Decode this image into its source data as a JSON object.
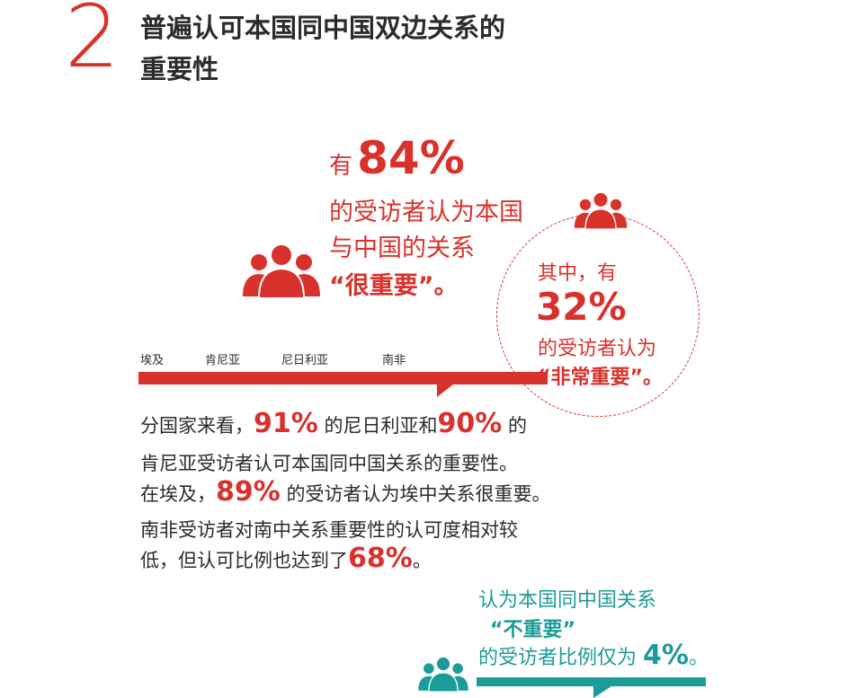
{
  "section": {
    "number": "2",
    "title_line1": "普遍认可本国同中国双边关系的",
    "title_line2": "重要性"
  },
  "main_stat": {
    "prefix": "有",
    "percent": "84%",
    "line1": "的受访者认为本国",
    "line2": "与中国的关系",
    "line3": "“很重要”。"
  },
  "sub_stat": {
    "line1": "其中，有",
    "percent": "32%",
    "line3": "的受访者认为",
    "line4": "“非常重要”。"
  },
  "countries": [
    "埃及",
    "肯尼亚",
    "尼日利亚",
    "南非"
  ],
  "body": {
    "l1_a": "分国家来看，",
    "l1_pct1": "91%",
    "l1_b": "的尼日利亚和",
    "l1_pct2": "90%",
    "l1_c": "的",
    "l2": "肯尼亚受访者认可本国同中国关系的重要性。",
    "l3_a": "在埃及，",
    "l3_pct": "89%",
    "l3_b": "的受访者认为埃中关系很重要。",
    "l4": "南非受访者对南中关系重要性的认可度相对较",
    "l5_a": "低，但认可比例也达到了",
    "l5_pct": "68%",
    "l5_b": "。"
  },
  "teal_stat": {
    "line1": "认为本国同中国关系",
    "line2": "“不重要”",
    "line3_a": "的受访者比例仅为",
    "percent": "4%",
    "line3_b": "。"
  },
  "icons": [
    "people-group-icon-red-large",
    "people-group-icon-red-small",
    "people-group-icon-teal"
  ],
  "colors": {
    "accent_red": "#d9312b",
    "accent_teal": "#1c9c98",
    "text_dark": "#2b2b2b"
  }
}
